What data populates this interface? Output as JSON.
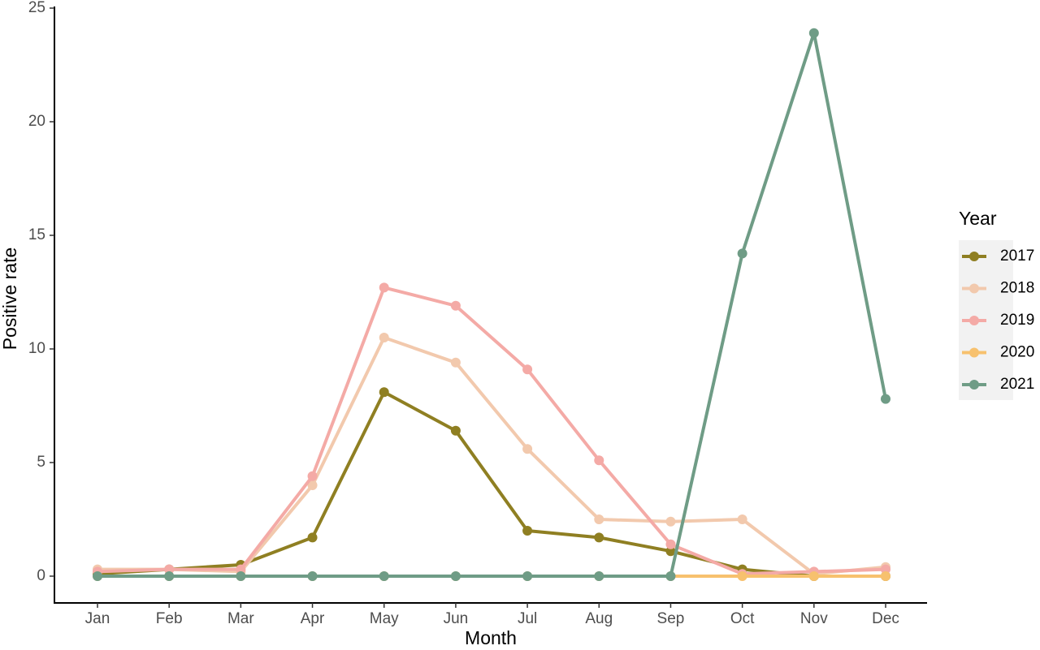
{
  "chart_data": {
    "type": "line",
    "x_label": "Month",
    "y_label": "Positive rate",
    "legend_title": "Year",
    "legend_position": "right",
    "categories": [
      "Jan",
      "Feb",
      "Mar",
      "Apr",
      "May",
      "Jun",
      "Jul",
      "Aug",
      "Sep",
      "Oct",
      "Nov",
      "Dec"
    ],
    "ylim": [
      0,
      25
    ],
    "yticks": [
      0,
      5,
      10,
      15,
      20,
      25
    ],
    "grid": false,
    "series": [
      {
        "name": "2017",
        "color": "#8f7f22",
        "values": [
          0.1,
          0.3,
          0.5,
          1.7,
          8.1,
          6.4,
          2.0,
          1.7,
          1.1,
          0.3,
          0.0,
          0.0
        ]
      },
      {
        "name": "2018",
        "color": "#f2c9ad",
        "values": [
          0.3,
          0.3,
          0.2,
          4.0,
          10.5,
          9.4,
          5.6,
          2.5,
          2.4,
          2.5,
          0.1,
          0.4
        ]
      },
      {
        "name": "2019",
        "color": "#f4aaa6",
        "values": [
          0.2,
          0.3,
          0.3,
          4.4,
          12.7,
          11.9,
          9.1,
          5.1,
          1.4,
          0.1,
          0.2,
          0.3
        ]
      },
      {
        "name": "2020",
        "color": "#f7c16e",
        "values": [
          0,
          0,
          0,
          0,
          0,
          0,
          0,
          0,
          0,
          0,
          0,
          0
        ]
      },
      {
        "name": "2021",
        "color": "#6f9c86",
        "values": [
          0,
          0,
          0,
          0,
          0,
          0,
          0,
          0,
          0,
          14.2,
          23.9,
          7.8
        ]
      }
    ]
  }
}
